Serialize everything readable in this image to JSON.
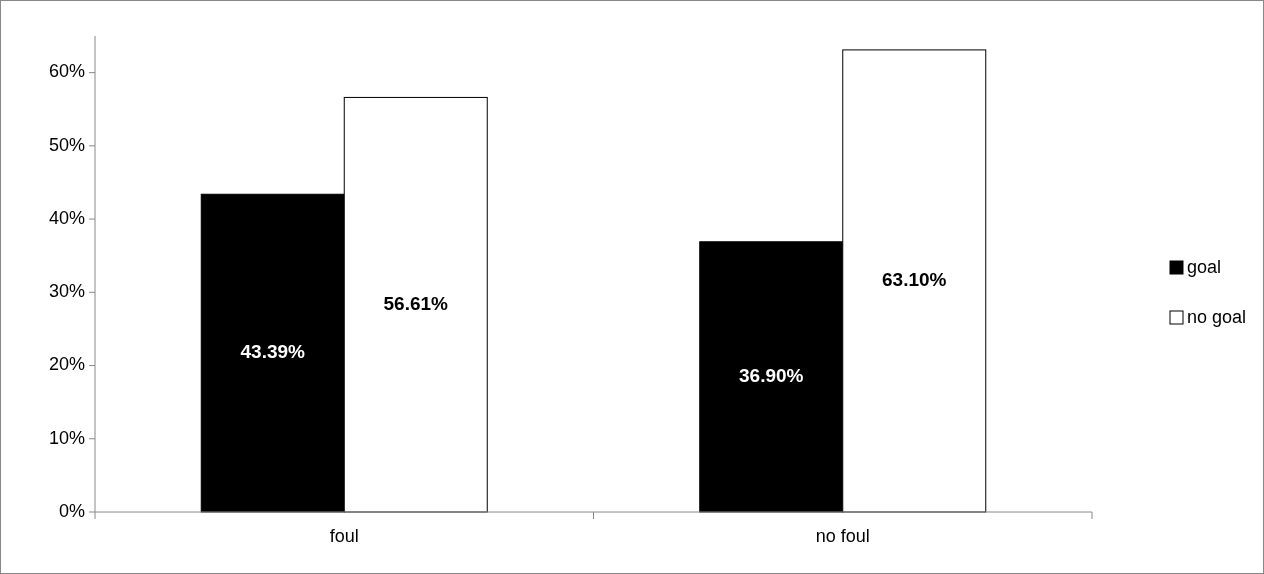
{
  "chart_data": {
    "type": "bar",
    "categories": [
      "foul",
      "no foul"
    ],
    "series": [
      {
        "name": "goal",
        "color": "#000000",
        "values": [
          43.39,
          36.9
        ],
        "value_labels": [
          "43.39%",
          "36.90%"
        ]
      },
      {
        "name": "no goal",
        "color": "#ffffff",
        "values": [
          56.61,
          63.1
        ],
        "value_labels": [
          "56.61%",
          "63.10%"
        ]
      }
    ],
    "ylim": [
      0,
      65
    ],
    "yticks": [
      {
        "value": 0,
        "label": "0%"
      },
      {
        "value": 10,
        "label": "10%"
      },
      {
        "value": 20,
        "label": "20%"
      },
      {
        "value": 30,
        "label": "30%"
      },
      {
        "value": 40,
        "label": "40%"
      },
      {
        "value": 50,
        "label": "50%"
      },
      {
        "value": 60,
        "label": "60%"
      }
    ],
    "grid": false,
    "legend": "right"
  }
}
